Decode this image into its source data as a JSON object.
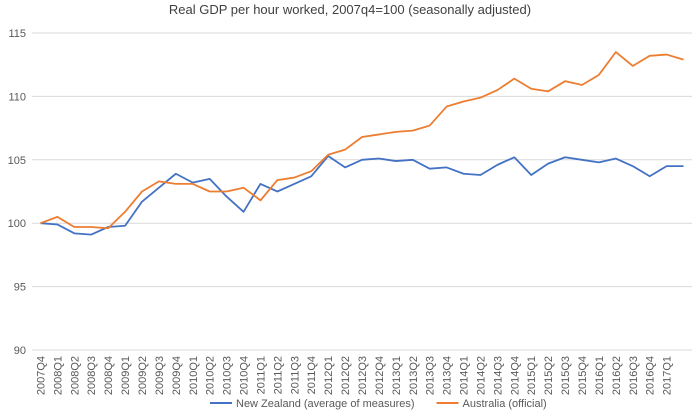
{
  "chart_data": {
    "type": "line",
    "title": "Real GDP per hour worked, 2007q4=100  (seasonally adjusted)",
    "categories": [
      "2007Q4",
      "2008Q1",
      "2008Q2",
      "2008Q3",
      "2008Q4",
      "2009Q1",
      "2009Q2",
      "2009Q3",
      "2009Q4",
      "2010Q1",
      "2010Q2",
      "2010Q3",
      "2010Q4",
      "2011Q1",
      "2011Q2",
      "2011Q3",
      "2011Q4",
      "2012Q1",
      "2012Q2",
      "2012Q3",
      "2012Q4",
      "2013Q1",
      "2013Q2",
      "2013Q3",
      "2013Q4",
      "2014Q1",
      "2014Q2",
      "2014Q3",
      "2014Q4",
      "2015Q1",
      "2015Q2",
      "2015Q3",
      "2015Q4",
      "2016Q1",
      "2016Q2",
      "2016Q3",
      "2016Q4",
      "2017Q1",
      null
    ],
    "series": [
      {
        "name": "New Zealand (average of measures)",
        "color": "#4472c4",
        "values": [
          100,
          99.9,
          99.2,
          99.1,
          99.7,
          99.8,
          101.7,
          102.8,
          103.9,
          103.2,
          103.5,
          102.1,
          100.9,
          103.1,
          102.5,
          103.1,
          103.7,
          105.3,
          104.4,
          105.0,
          105.1,
          104.9,
          105.0,
          104.3,
          104.4,
          103.9,
          103.8,
          104.6,
          105.2,
          103.8,
          104.7,
          105.2,
          105.0,
          104.8,
          105.1,
          104.5,
          103.7,
          104.5,
          104.5
        ]
      },
      {
        "name": "Australia (official)",
        "color": "#ed7d31",
        "values": [
          100,
          100.5,
          99.7,
          99.7,
          99.6,
          100.9,
          102.5,
          103.3,
          103.1,
          103.1,
          102.5,
          102.5,
          102.8,
          101.8,
          103.4,
          103.6,
          104.1,
          105.4,
          105.8,
          106.8,
          107.0,
          107.2,
          107.3,
          107.7,
          109.2,
          109.6,
          109.9,
          110.5,
          111.4,
          110.6,
          110.4,
          111.2,
          110.9,
          111.7,
          113.5,
          112.4,
          113.2,
          113.3,
          112.9
        ]
      }
    ],
    "ylim": [
      90,
      115
    ],
    "yticks": [
      90,
      95,
      100,
      105,
      110,
      115
    ],
    "grid": true,
    "legend": "bottom"
  }
}
